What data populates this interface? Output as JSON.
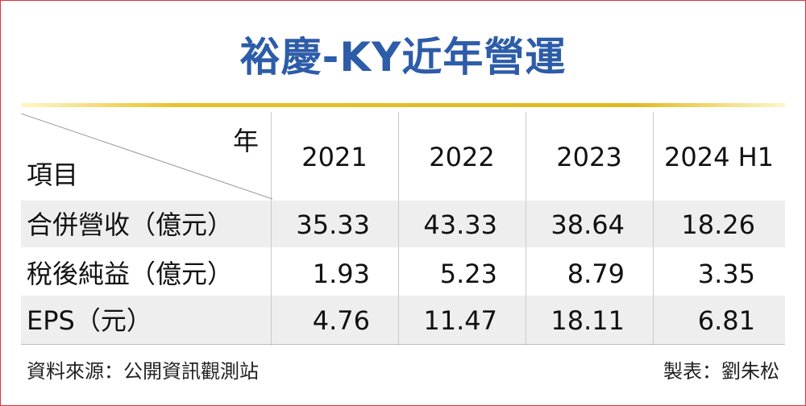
{
  "title": "裕慶-KY近年營運",
  "table": {
    "corner_top": "年",
    "corner_bottom": "項目",
    "columns": [
      "2021",
      "2022",
      "2023",
      "2024 H1"
    ],
    "rows": [
      {
        "label": "合併營收（億元）",
        "values": [
          "35.33",
          "43.33",
          "38.64",
          "18.26"
        ]
      },
      {
        "label": "稅後純益（億元）",
        "values": [
          "1.93",
          "5.23",
          "8.79",
          "3.35"
        ]
      },
      {
        "label": "EPS（元）",
        "values": [
          "4.76",
          "11.47",
          "18.11",
          "6.81"
        ]
      }
    ]
  },
  "source": "資料來源：公開資訊觀測站",
  "credit": "製表：劉朱松"
}
